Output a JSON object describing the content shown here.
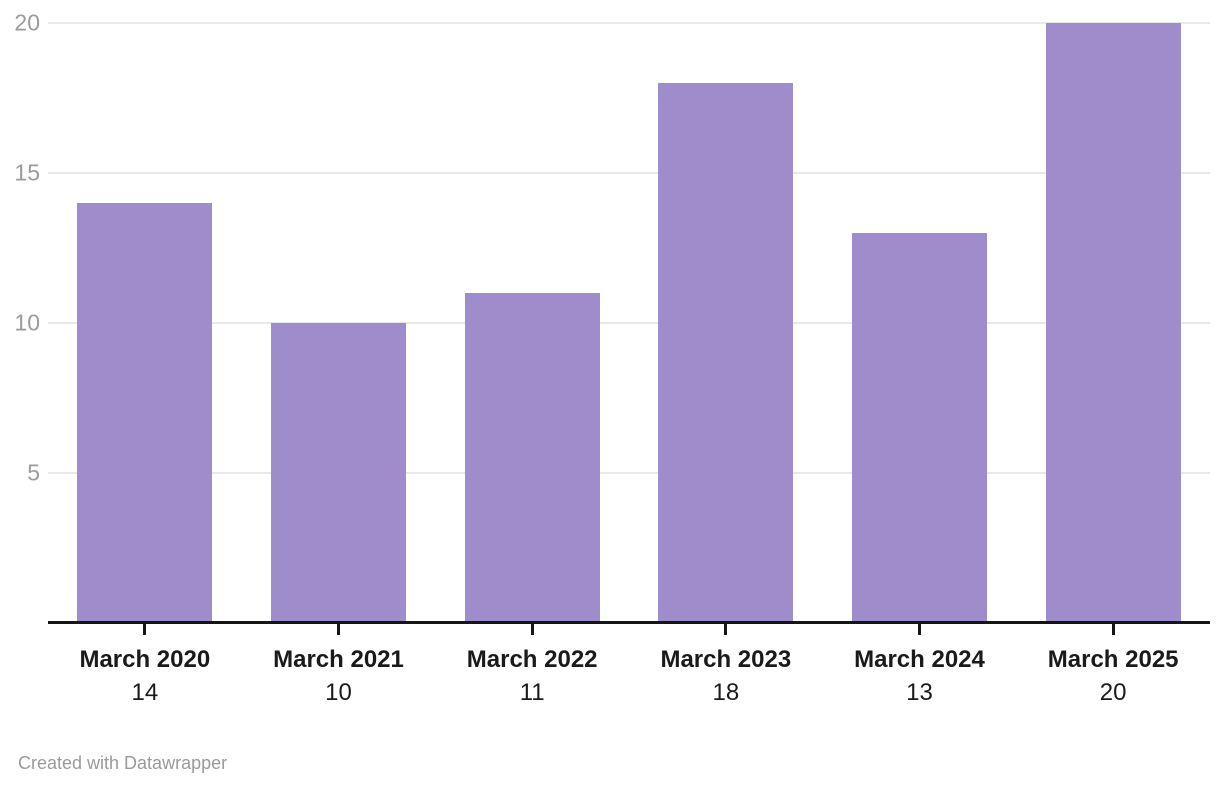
{
  "chart_data": {
    "type": "bar",
    "categories": [
      "March 2020",
      "March 2021",
      "March 2022",
      "March 2023",
      "March 2024",
      "March 2025"
    ],
    "values": [
      14,
      10,
      11,
      18,
      13,
      20
    ],
    "title": "",
    "xlabel": "",
    "ylabel": "",
    "ylim": [
      0,
      20
    ],
    "yticks": [
      5,
      10,
      15,
      20
    ],
    "grid": true,
    "legend": "none",
    "value_labels_shown": true
  },
  "colors": {
    "bar": "#9e8ccb",
    "gridline": "#e8e8e8",
    "y_label": "#9b9b9b",
    "baseline": "#161616",
    "x_label": "#1a1a1a",
    "credit": "#9a9a9a",
    "background": "#ffffff"
  },
  "footer": {
    "credit": "Created with Datawrapper"
  }
}
